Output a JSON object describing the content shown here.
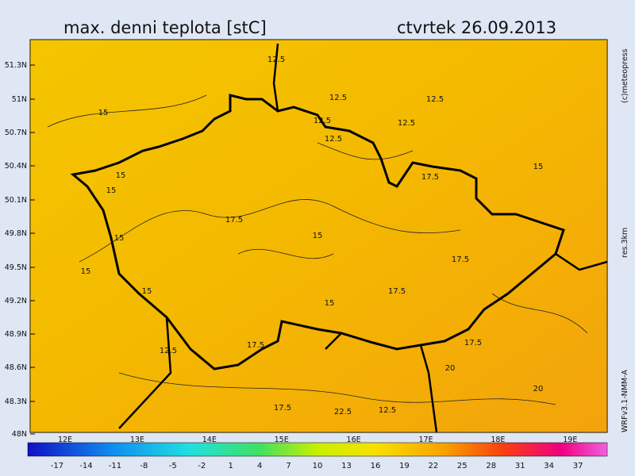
{
  "header": {
    "title": "max. denni teplota [stC]",
    "date": "ctvrtek 26.09.2013"
  },
  "map": {
    "lat_labels": [
      "51.3N",
      "51N",
      "50.7N",
      "50.4N",
      "50.1N",
      "49.8N",
      "49.5N",
      "49.2N",
      "48.9N",
      "48.6N",
      "48.3N",
      "48N"
    ],
    "lon_labels": [
      "12E",
      "13E",
      "14E",
      "15E",
      "16E",
      "17E",
      "18E",
      "19E"
    ],
    "contour_labels": [
      "12.5",
      "12.5",
      "12.5",
      "12.5",
      "12.5",
      "12.5",
      "15",
      "15",
      "15",
      "15",
      "15",
      "15",
      "15",
      "17.5",
      "17.5",
      "17.5",
      "17.5",
      "17.5",
      "17.5",
      "20",
      "20",
      "22.5",
      "12.5",
      "15",
      "17.5",
      "12.5",
      "15"
    ]
  },
  "colorbar": {
    "ticks": [
      -17,
      -14,
      -11,
      -8,
      -5,
      -2,
      1,
      4,
      7,
      10,
      13,
      16,
      19,
      22,
      25,
      28,
      31,
      34,
      37
    ]
  },
  "side_labels": {
    "copyright": "(c)meteopress",
    "resolution": "res.3km",
    "model": "WRFv3.1-NMM-A"
  }
}
